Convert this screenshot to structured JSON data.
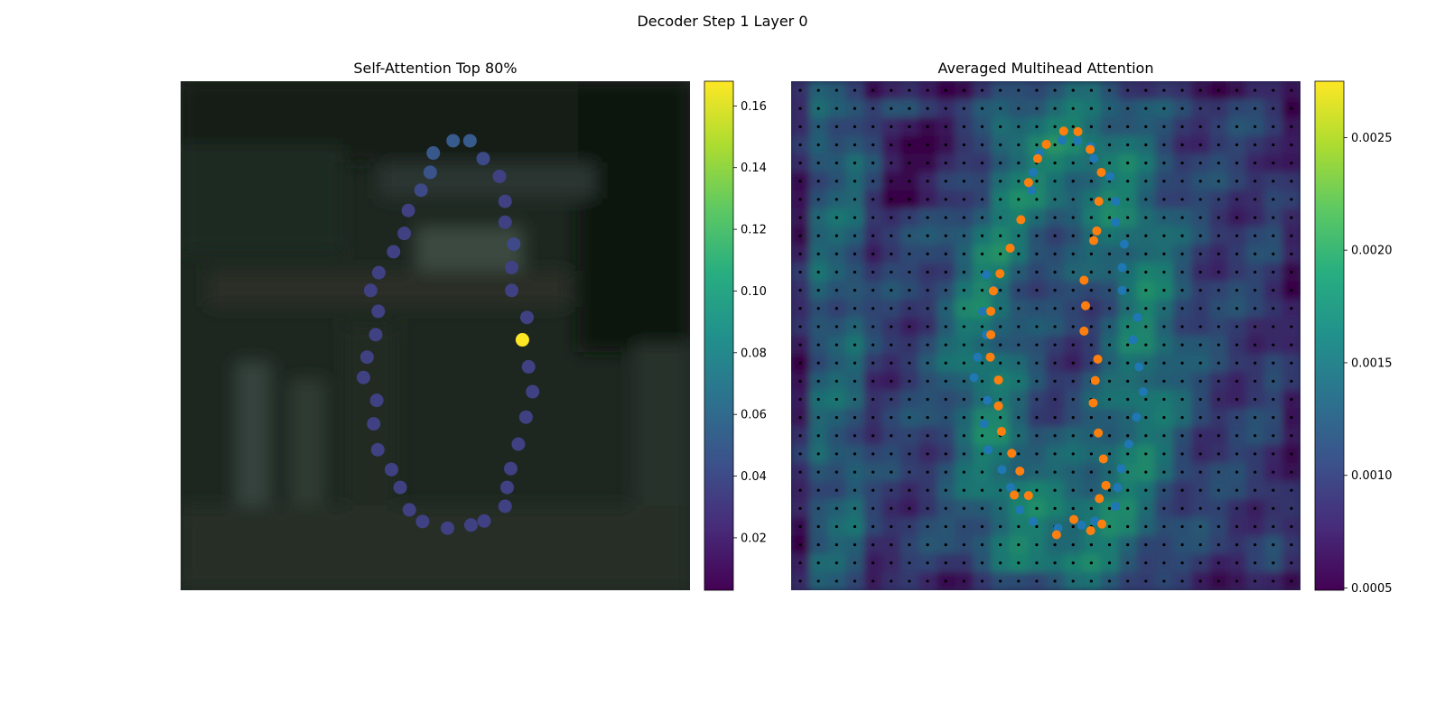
{
  "figure": {
    "title": "Decoder Step 1 Layer 0"
  },
  "chart_data": [
    {
      "type": "scatter",
      "title": "Self-Attention Top 80%",
      "background": "blurred photograph (dark green scene)",
      "colormap": "viridis",
      "colorbar": {
        "min": 0.003,
        "max": 0.168,
        "ticks": [
          0.02,
          0.04,
          0.06,
          0.08,
          0.1,
          0.12,
          0.14,
          0.16
        ],
        "tick_labels": [
          "0.02",
          "0.04",
          "0.06",
          "0.08",
          "0.10",
          "0.12",
          "0.14",
          "0.16"
        ]
      },
      "axes_visible": false,
      "xlim": [
        0,
        100
      ],
      "ylim": [
        0,
        100
      ],
      "points": [
        {
          "x": 53.5,
          "y": 11.7,
          "v": 0.05
        },
        {
          "x": 56.8,
          "y": 11.7,
          "v": 0.05
        },
        {
          "x": 49.6,
          "y": 14.1,
          "v": 0.048
        },
        {
          "x": 59.4,
          "y": 15.2,
          "v": 0.04
        },
        {
          "x": 49.0,
          "y": 17.9,
          "v": 0.045
        },
        {
          "x": 62.6,
          "y": 18.7,
          "v": 0.035
        },
        {
          "x": 47.2,
          "y": 21.4,
          "v": 0.04
        },
        {
          "x": 63.7,
          "y": 23.6,
          "v": 0.035
        },
        {
          "x": 44.7,
          "y": 25.4,
          "v": 0.035
        },
        {
          "x": 63.7,
          "y": 27.7,
          "v": 0.035
        },
        {
          "x": 43.9,
          "y": 29.9,
          "v": 0.035
        },
        {
          "x": 65.4,
          "y": 32.0,
          "v": 0.04
        },
        {
          "x": 41.8,
          "y": 33.5,
          "v": 0.035
        },
        {
          "x": 65.0,
          "y": 36.6,
          "v": 0.035
        },
        {
          "x": 38.9,
          "y": 37.6,
          "v": 0.035
        },
        {
          "x": 65.0,
          "y": 41.1,
          "v": 0.035
        },
        {
          "x": 37.3,
          "y": 41.1,
          "v": 0.035
        },
        {
          "x": 38.8,
          "y": 45.2,
          "v": 0.035
        },
        {
          "x": 68.0,
          "y": 46.4,
          "v": 0.035
        },
        {
          "x": 38.3,
          "y": 49.8,
          "v": 0.035
        },
        {
          "x": 67.1,
          "y": 50.8,
          "v": 0.168
        },
        {
          "x": 36.6,
          "y": 54.2,
          "v": 0.035
        },
        {
          "x": 68.3,
          "y": 56.1,
          "v": 0.035
        },
        {
          "x": 35.9,
          "y": 58.2,
          "v": 0.035
        },
        {
          "x": 69.1,
          "y": 61.0,
          "v": 0.035
        },
        {
          "x": 38.5,
          "y": 62.7,
          "v": 0.035
        },
        {
          "x": 67.8,
          "y": 66.0,
          "v": 0.035
        },
        {
          "x": 37.9,
          "y": 67.3,
          "v": 0.035
        },
        {
          "x": 66.3,
          "y": 71.3,
          "v": 0.035
        },
        {
          "x": 38.7,
          "y": 72.4,
          "v": 0.035
        },
        {
          "x": 64.8,
          "y": 76.1,
          "v": 0.035
        },
        {
          "x": 41.4,
          "y": 76.3,
          "v": 0.035
        },
        {
          "x": 64.1,
          "y": 79.8,
          "v": 0.035
        },
        {
          "x": 43.1,
          "y": 79.8,
          "v": 0.035
        },
        {
          "x": 63.7,
          "y": 83.5,
          "v": 0.035
        },
        {
          "x": 44.9,
          "y": 84.2,
          "v": 0.035
        },
        {
          "x": 47.5,
          "y": 86.5,
          "v": 0.035
        },
        {
          "x": 59.6,
          "y": 86.4,
          "v": 0.035
        },
        {
          "x": 57.0,
          "y": 87.2,
          "v": 0.035
        },
        {
          "x": 52.4,
          "y": 87.8,
          "v": 0.035
        }
      ]
    },
    {
      "type": "heatmap",
      "title": "Averaged Multihead Attention",
      "colormap": "viridis",
      "colorbar": {
        "min": 0.00049,
        "max": 0.00275,
        "ticks": [
          0.0005,
          0.001,
          0.0015,
          0.002,
          0.0025
        ],
        "tick_labels": [
          "0.0005",
          "0.0010",
          "0.0015",
          "0.0020",
          "0.0025"
        ]
      },
      "axes_visible": false,
      "grid_size": [
        28,
        28
      ],
      "xlim": [
        0,
        100
      ],
      "ylim": [
        0,
        100
      ],
      "overlay_series": [
        {
          "color": "#1f77b4",
          "points": [
            [
              53.2,
              11.6
            ],
            [
              56.2,
              11.7
            ],
            [
              58.8,
              12.8
            ],
            [
              48.8,
              14.1
            ],
            [
              59.4,
              15.2
            ],
            [
              47.5,
              17.9
            ],
            [
              62.6,
              18.7
            ],
            [
              47.2,
              21.4
            ],
            [
              63.7,
              23.6
            ],
            [
              63.7,
              27.7
            ],
            [
              65.4,
              32.0
            ],
            [
              65.0,
              36.6
            ],
            [
              65.0,
              41.1
            ],
            [
              38.3,
              38.0
            ],
            [
              39.8,
              41.1
            ],
            [
              37.6,
              45.2
            ],
            [
              68.0,
              46.4
            ],
            [
              38.3,
              49.8
            ],
            [
              67.1,
              50.8
            ],
            [
              36.6,
              54.2
            ],
            [
              68.3,
              56.1
            ],
            [
              35.9,
              58.2
            ],
            [
              69.1,
              61.0
            ],
            [
              38.5,
              62.7
            ],
            [
              67.8,
              66.0
            ],
            [
              37.9,
              67.3
            ],
            [
              66.3,
              71.3
            ],
            [
              38.7,
              72.4
            ],
            [
              64.8,
              76.1
            ],
            [
              41.4,
              76.3
            ],
            [
              64.1,
              79.8
            ],
            [
              43.1,
              79.8
            ],
            [
              63.7,
              83.5
            ],
            [
              44.9,
              84.2
            ],
            [
              47.5,
              86.5
            ],
            [
              59.6,
              86.4
            ],
            [
              57.0,
              87.2
            ],
            [
              52.4,
              87.8
            ]
          ]
        },
        {
          "color": "#ff7f0e",
          "points": [
            [
              53.5,
              9.8
            ],
            [
              56.3,
              9.9
            ],
            [
              50.1,
              12.4
            ],
            [
              58.7,
              13.4
            ],
            [
              48.4,
              15.2
            ],
            [
              60.9,
              17.9
            ],
            [
              46.6,
              19.9
            ],
            [
              60.4,
              23.6
            ],
            [
              45.1,
              27.2
            ],
            [
              60.0,
              29.4
            ],
            [
              43.0,
              32.8
            ],
            [
              59.4,
              31.3
            ],
            [
              57.5,
              39.1
            ],
            [
              41.0,
              37.8
            ],
            [
              57.8,
              44.1
            ],
            [
              39.7,
              41.2
            ],
            [
              39.2,
              45.2
            ],
            [
              57.5,
              49.1
            ],
            [
              39.2,
              49.8
            ],
            [
              60.2,
              54.6
            ],
            [
              39.1,
              54.2
            ],
            [
              59.7,
              58.8
            ],
            [
              40.7,
              58.7
            ],
            [
              59.3,
              63.2
            ],
            [
              40.7,
              63.8
            ],
            [
              60.3,
              69.1
            ],
            [
              41.3,
              68.8
            ],
            [
              61.3,
              74.2
            ],
            [
              43.3,
              73.1
            ],
            [
              61.8,
              79.4
            ],
            [
              44.9,
              76.6
            ],
            [
              60.5,
              82.0
            ],
            [
              43.8,
              81.3
            ],
            [
              58.8,
              88.3
            ],
            [
              46.6,
              81.4
            ],
            [
              55.5,
              86.1
            ],
            [
              52.1,
              89.1
            ],
            [
              61.0,
              87.0
            ]
          ]
        }
      ]
    }
  ]
}
